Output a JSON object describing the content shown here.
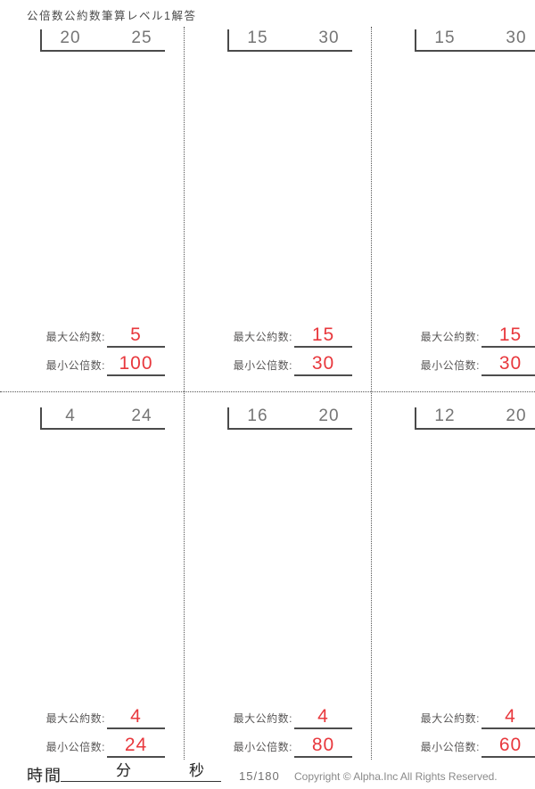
{
  "title": "公倍数公約数筆算レベル1解答",
  "labels": {
    "gcd": "最大公約数:",
    "lcm": "最小公倍数:"
  },
  "problems": [
    {
      "a": "20",
      "b": "25",
      "gcd": "5",
      "lcm": "100"
    },
    {
      "a": "15",
      "b": "30",
      "gcd": "15",
      "lcm": "30"
    },
    {
      "a": "15",
      "b": "30",
      "gcd": "15",
      "lcm": "30"
    },
    {
      "a": "4",
      "b": "24",
      "gcd": "4",
      "lcm": "24"
    },
    {
      "a": "16",
      "b": "20",
      "gcd": "4",
      "lcm": "80"
    },
    {
      "a": "12",
      "b": "20",
      "gcd": "4",
      "lcm": "60"
    }
  ],
  "footer": {
    "time_label": "時間",
    "minutes_label": "分",
    "seconds_label": "秒",
    "page_number": "15/180",
    "copyright": "Copyright ©  Alpha.Inc All Rights Reserved."
  },
  "colors": {
    "answer_red": "#e8383d",
    "line_gray": "#4a4a4a",
    "number_gray": "#757575"
  }
}
